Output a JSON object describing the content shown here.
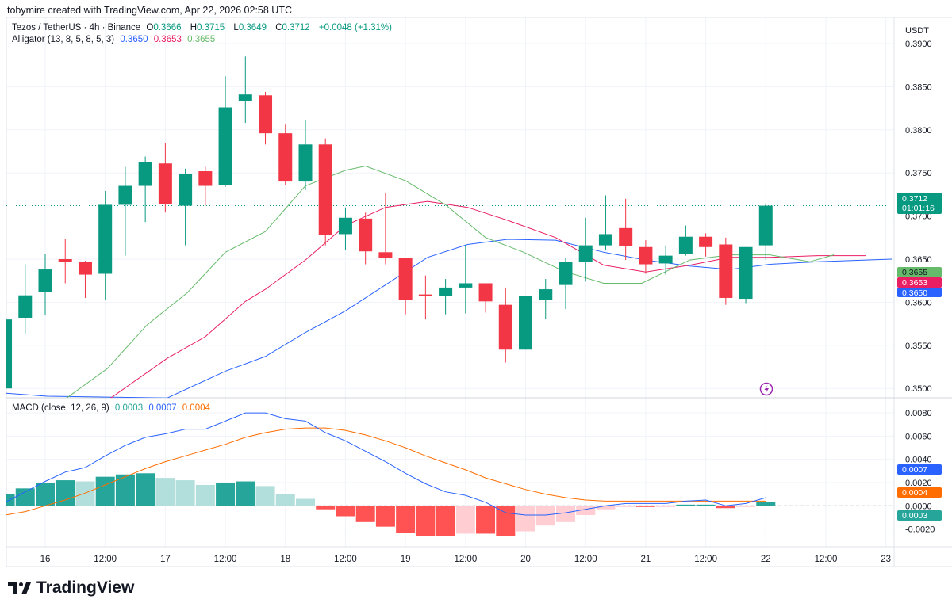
{
  "credit": "tobymire created with TradingView.com, Apr 22, 2026 02:58 UTC",
  "legend": {
    "symbol": "Tezos / TetherUS · 4h · Binance",
    "o_label": "O",
    "o": "0.3666",
    "h_label": "H",
    "h": "0.3715",
    "l_label": "L",
    "l": "0.3649",
    "c_label": "C",
    "c": "0.3712",
    "change": "+0.0048 (+1.31%)",
    "alligator": "Alligator (13, 8, 5, 8, 5, 3)",
    "jaw": "0.3650",
    "teeth": "0.3653",
    "lips": "0.3655",
    "macd": "MACD (close, 12, 26, 9)",
    "hist": "0.0003",
    "macd_val": "0.0007",
    "signal": "0.0004"
  },
  "currency": "USDT",
  "badges": {
    "price": "0.3712",
    "countdown": "01:01:16",
    "lips": "0.3655",
    "teeth": "0.3653",
    "jaw": "0.3650",
    "macd": "0.0007",
    "signal": "0.0004",
    "hist": "0.0003"
  },
  "logo": "TradingView",
  "colors": {
    "up": "#089981",
    "down": "#f23645",
    "jaw": "#2962ff",
    "teeth": "#e91e63",
    "lips": "#66bb6a",
    "macd": "#2962ff",
    "signal": "#ff6d00",
    "histUpStrong": "#26a69a",
    "histUpWeak": "#b2dfdb",
    "histDownStrong": "#ff5252",
    "histDownWeak": "#ffcdd2"
  },
  "chart_data": [
    {
      "type": "candlestick",
      "title": "Tezos / TetherUS · 4h · Binance",
      "ylim": [
        0.349,
        0.391
      ],
      "y_ticks": [
        "0.3500",
        "0.3550",
        "0.3600",
        "0.3650",
        "0.3700",
        "0.3750",
        "0.3800",
        "0.3850",
        "0.3900"
      ],
      "x_ticks": [
        {
          "i": 0,
          "label": "16"
        },
        {
          "i": 3,
          "label": "12:00"
        },
        {
          "i": 6,
          "label": "17"
        },
        {
          "i": 9,
          "label": "12:00"
        },
        {
          "i": 12,
          "label": "18"
        },
        {
          "i": 15,
          "label": "12:00"
        },
        {
          "i": 18,
          "label": "19"
        },
        {
          "i": 21,
          "label": "12:00"
        },
        {
          "i": 24,
          "label": "20"
        },
        {
          "i": 27,
          "label": "12:00"
        },
        {
          "i": 30,
          "label": "21"
        },
        {
          "i": 33,
          "label": "12:00"
        },
        {
          "i": 36,
          "label": "22"
        },
        {
          "i": 39,
          "label": "12:00"
        },
        {
          "i": 42,
          "label": "23"
        }
      ],
      "first_index": -2,
      "ohlc": [
        [
          0.35,
          0.358,
          0.3495,
          0.358
        ],
        [
          0.3582,
          0.3644,
          0.3563,
          0.3608
        ],
        [
          0.3612,
          0.3656,
          0.3585,
          0.3638
        ],
        [
          0.365,
          0.3673,
          0.3622,
          0.3647
        ],
        [
          0.3647,
          0.3648,
          0.3605,
          0.3632
        ],
        [
          0.3633,
          0.3729,
          0.3603,
          0.3713
        ],
        [
          0.3713,
          0.3757,
          0.3654,
          0.3735
        ],
        [
          0.3735,
          0.3769,
          0.3693,
          0.3763
        ],
        [
          0.3761,
          0.3785,
          0.3704,
          0.3714
        ],
        [
          0.3712,
          0.3755,
          0.3666,
          0.3749
        ],
        [
          0.3752,
          0.3757,
          0.3712,
          0.3735
        ],
        [
          0.3736,
          0.3862,
          0.3734,
          0.3826
        ],
        [
          0.3833,
          0.3885,
          0.3808,
          0.3841
        ],
        [
          0.384,
          0.3844,
          0.3783,
          0.3796
        ],
        [
          0.3796,
          0.3806,
          0.3736,
          0.374
        ],
        [
          0.374,
          0.3811,
          0.373,
          0.3783
        ],
        [
          0.3783,
          0.379,
          0.3666,
          0.3678
        ],
        [
          0.3679,
          0.371,
          0.3661,
          0.3698
        ],
        [
          0.3697,
          0.3704,
          0.3644,
          0.3659
        ],
        [
          0.3658,
          0.3727,
          0.3644,
          0.3651
        ],
        [
          0.3651,
          0.3651,
          0.3586,
          0.3603
        ],
        [
          0.3609,
          0.3631,
          0.358,
          0.3608
        ],
        [
          0.3607,
          0.3627,
          0.3586,
          0.3617
        ],
        [
          0.3617,
          0.3666,
          0.3587,
          0.3622
        ],
        [
          0.3622,
          0.3622,
          0.3588,
          0.3601
        ],
        [
          0.3597,
          0.3617,
          0.353,
          0.3545
        ],
        [
          0.3545,
          0.3607,
          0.3545,
          0.3607
        ],
        [
          0.3603,
          0.3627,
          0.3581,
          0.3615
        ],
        [
          0.362,
          0.3651,
          0.3592,
          0.3647
        ],
        [
          0.3647,
          0.3698,
          0.3624,
          0.3666
        ],
        [
          0.3666,
          0.3724,
          0.366,
          0.3679
        ],
        [
          0.3686,
          0.372,
          0.3649,
          0.3665
        ],
        [
          0.3664,
          0.3672,
          0.3633,
          0.3644
        ],
        [
          0.3645,
          0.3666,
          0.3632,
          0.3654
        ],
        [
          0.3656,
          0.3689,
          0.3654,
          0.3676
        ],
        [
          0.3676,
          0.368,
          0.3653,
          0.3664
        ],
        [
          0.3667,
          0.3675,
          0.3597,
          0.3605
        ],
        [
          0.3604,
          0.3664,
          0.3599,
          0.3664
        ],
        [
          0.3666,
          0.3715,
          0.3649,
          0.3712
        ]
      ],
      "last_price": 0.3712,
      "alligator": {
        "jaw": [
          [
            -2.3,
            0.3495
          ],
          [
            0.1,
            0.3491
          ],
          [
            6.1,
            0.3489
          ],
          [
            9,
            0.352
          ],
          [
            11,
            0.3537
          ],
          [
            13,
            0.3565
          ],
          [
            15,
            0.359
          ],
          [
            17,
            0.362
          ],
          [
            19.1,
            0.3652
          ],
          [
            21.1,
            0.3667
          ],
          [
            23.1,
            0.3673
          ],
          [
            25.5,
            0.3672
          ],
          [
            27.9,
            0.3658
          ],
          [
            30,
            0.3649
          ],
          [
            32.2,
            0.3642
          ],
          [
            34.2,
            0.3638
          ],
          [
            36.2,
            0.3644
          ],
          [
            38.6,
            0.3647
          ],
          [
            42.3,
            0.365
          ]
        ],
        "teeth": [
          [
            3.1,
            0.3486
          ],
          [
            6.1,
            0.3535
          ],
          [
            8,
            0.356
          ],
          [
            10,
            0.3601
          ],
          [
            11,
            0.3615
          ],
          [
            13,
            0.3649
          ],
          [
            15,
            0.3689
          ],
          [
            17,
            0.371
          ],
          [
            19.1,
            0.3717
          ],
          [
            21.1,
            0.371
          ],
          [
            23.1,
            0.3695
          ],
          [
            25.5,
            0.3675
          ],
          [
            27.9,
            0.3643
          ],
          [
            30,
            0.3635
          ],
          [
            32.2,
            0.3643
          ],
          [
            34.2,
            0.3652
          ],
          [
            36.2,
            0.3652
          ],
          [
            38.6,
            0.3654
          ],
          [
            41,
            0.3654
          ]
        ],
        "lips": [
          [
            0.9,
            0.3486
          ],
          [
            3.1,
            0.3523
          ],
          [
            5.1,
            0.3574
          ],
          [
            7.1,
            0.3611
          ],
          [
            9,
            0.3658
          ],
          [
            11,
            0.3682
          ],
          [
            13,
            0.3735
          ],
          [
            15,
            0.3753
          ],
          [
            16,
            0.3758
          ],
          [
            18,
            0.3741
          ],
          [
            20,
            0.3713
          ],
          [
            22,
            0.3675
          ],
          [
            23.9,
            0.3658
          ],
          [
            25.9,
            0.3636
          ],
          [
            27.9,
            0.3622
          ],
          [
            29.8,
            0.3622
          ],
          [
            32.2,
            0.3649
          ],
          [
            34.2,
            0.3655
          ],
          [
            36.2,
            0.3655
          ],
          [
            38.2,
            0.3647
          ],
          [
            39.4,
            0.3655
          ]
        ]
      }
    },
    {
      "type": "bar+line",
      "title": "MACD (close, 12, 26, 9)",
      "ylim": [
        -0.0026,
        0.0083
      ],
      "y_ticks": [
        "-0.0020",
        "0.0000",
        "0.0020",
        "0.0040",
        "0.0060",
        "0.0080"
      ],
      "first_index": -2,
      "histogram": [
        0.001,
        0.0015,
        0.002,
        0.0022,
        0.0021,
        0.0025,
        0.0027,
        0.0028,
        0.0024,
        0.0022,
        0.0018,
        0.002,
        0.0021,
        0.0017,
        0.001,
        0.0006,
        -0.0003,
        -0.0009,
        -0.0014,
        -0.0018,
        -0.0023,
        -0.0026,
        -0.0026,
        -0.0024,
        -0.0024,
        -0.0026,
        -0.0022,
        -0.0017,
        -0.0014,
        -0.0008,
        -0.0003,
        -0.0001,
        -0.0001,
        -5e-05,
        0.0001,
        0.0001,
        -0.0002,
        -5e-05,
        0.0003
      ],
      "macd": [
        0.0003,
        0.0012,
        0.0021,
        0.0029,
        0.0033,
        0.0043,
        0.0052,
        0.0059,
        0.0062,
        0.0066,
        0.0066,
        0.0073,
        0.008,
        0.008,
        0.0075,
        0.0073,
        0.0063,
        0.0056,
        0.0047,
        0.0038,
        0.0028,
        0.0019,
        0.0012,
        0.0009,
        0.0003,
        -0.0006,
        -0.0008,
        -0.0008,
        -0.0006,
        -0.0003,
        0.0,
        0.0002,
        0.0002,
        0.0002,
        0.0004,
        0.0005,
        0.0,
        0.0002,
        0.0007
      ],
      "signal": [
        -0.0008,
        -0.0005,
        0.0,
        0.0005,
        0.0011,
        0.0018,
        0.0025,
        0.0032,
        0.0038,
        0.0043,
        0.0048,
        0.0053,
        0.0059,
        0.0063,
        0.0066,
        0.0067,
        0.0067,
        0.0065,
        0.0061,
        0.0056,
        0.005,
        0.0043,
        0.0037,
        0.0031,
        0.0024,
        0.0019,
        0.0014,
        0.001,
        0.0007,
        0.0005,
        0.0004,
        0.0004,
        0.0004,
        0.0004,
        0.0004,
        0.0004,
        0.0004,
        0.0004,
        0.0004
      ]
    }
  ]
}
